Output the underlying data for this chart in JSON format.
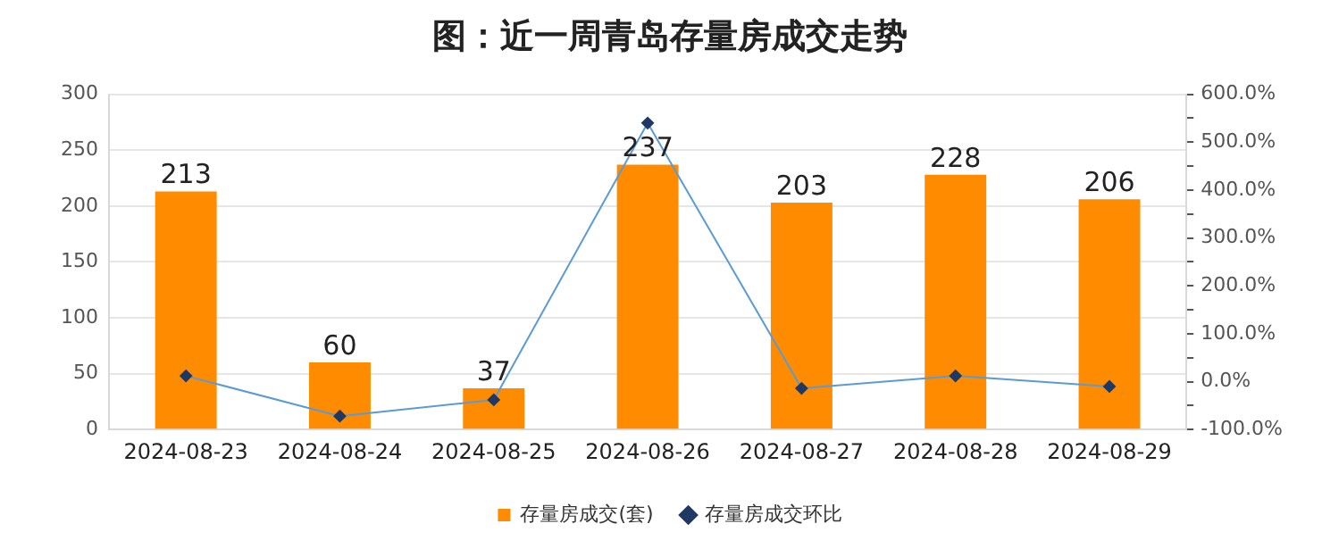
{
  "chart_data": {
    "type": "bar",
    "title": "图：近一周青岛存量房成交走势",
    "categories": [
      "2024-08-23",
      "2024-08-24",
      "2024-08-25",
      "2024-08-26",
      "2024-08-27",
      "2024-08-28",
      "2024-08-29"
    ],
    "series": [
      {
        "name": "存量房成交(套)",
        "color": "#ff8c00",
        "values": [
          213,
          60,
          37,
          237,
          203,
          228,
          206
        ],
        "value_labels": [
          "213",
          "60",
          "37",
          "237",
          "203",
          "228",
          "206"
        ]
      },
      {
        "name": "存量房成交环比",
        "type": "line",
        "axis": "y2",
        "color": "#5b9bd5",
        "marker": "diamond",
        "values": [
          12,
          -72,
          -38,
          540,
          -14,
          12,
          -10
        ]
      }
    ],
    "ylim": [
      0,
      300
    ],
    "yticks": [
      0,
      50,
      100,
      150,
      200,
      250,
      300
    ],
    "y2lim": [
      -100,
      600
    ],
    "y2ticks": [
      {
        "value": -100,
        "label": "-100.0%"
      },
      {
        "value": -50,
        "label": null
      },
      {
        "value": 0,
        "label": "0.0%"
      },
      {
        "value": 50,
        "label": null
      },
      {
        "value": 100,
        "label": "100.0%"
      },
      {
        "value": 150,
        "label": null
      },
      {
        "value": 200,
        "label": "200.0%"
      },
      {
        "value": 250,
        "label": null
      },
      {
        "value": 300,
        "label": "300.0%"
      },
      {
        "value": 350,
        "label": null
      },
      {
        "value": 400,
        "label": "400.0%"
      },
      {
        "value": 450,
        "label": null
      },
      {
        "value": 500,
        "label": "500.0%"
      },
      {
        "value": 550,
        "label": null
      },
      {
        "value": 600,
        "label": "600.0%"
      }
    ],
    "grid": "y",
    "legend": "bottom"
  }
}
